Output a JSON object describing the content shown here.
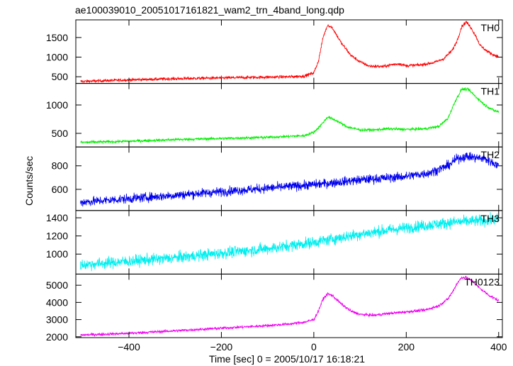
{
  "chart_data": {
    "type": "line",
    "title": "ae100039010_20051017161821_wam2_trn_4band_long.qdp",
    "xlabel": "Time [sec] 0 = 2005/10/17 16:18:21",
    "ylabel": "Counts/sec",
    "xlim": [
      -515,
      408
    ],
    "x_ticks": [
      -400,
      -200,
      0,
      200,
      400
    ],
    "x_tick_labels": [
      "−400",
      "−200",
      "0",
      "200",
      "400"
    ],
    "grid": false,
    "panels": [
      {
        "name": "TH0",
        "color": "#ff0000",
        "ylim": [
          330,
          1950
        ],
        "y_ticks": [
          500,
          1000,
          1500
        ],
        "noise": 28,
        "x": [
          -505,
          -400,
          -300,
          -200,
          -100,
          -50,
          -20,
          0,
          10,
          20,
          30,
          40,
          50,
          60,
          80,
          100,
          120,
          150,
          170,
          185,
          200,
          230,
          260,
          280,
          300,
          310,
          320,
          330,
          340,
          350,
          360,
          375,
          390,
          400
        ],
        "y": [
          380,
          420,
          450,
          470,
          490,
          500,
          520,
          600,
          900,
          1500,
          1820,
          1750,
          1550,
          1350,
          1050,
          880,
          770,
          760,
          810,
          830,
          780,
          800,
          860,
          950,
          1180,
          1420,
          1780,
          1900,
          1750,
          1550,
          1300,
          1150,
          1050,
          1020
        ]
      },
      {
        "name": "TH1",
        "color": "#00ee00",
        "ylim": [
          260,
          1380
        ],
        "y_ticks": [
          500,
          1000
        ],
        "noise": 18,
        "x": [
          -505,
          -400,
          -300,
          -200,
          -100,
          -20,
          0,
          15,
          30,
          50,
          70,
          100,
          130,
          160,
          200,
          240,
          270,
          290,
          305,
          320,
          335,
          350,
          370,
          390,
          400
        ],
        "y": [
          340,
          360,
          390,
          410,
          430,
          460,
          520,
          640,
          790,
          720,
          620,
          560,
          560,
          580,
          570,
          580,
          620,
          760,
          1050,
          1280,
          1270,
          1150,
          1000,
          900,
          880
        ]
      },
      {
        "name": "TH2",
        "color": "#0000ee",
        "ylim": [
          420,
          960
        ],
        "y_ticks": [
          600,
          800
        ],
        "noise": 28,
        "x": [
          -505,
          -300,
          -100,
          0,
          100,
          200,
          250,
          290,
          310,
          330,
          350,
          370,
          390,
          400
        ],
        "y": [
          490,
          550,
          610,
          640,
          680,
          710,
          740,
          800,
          860,
          880,
          870,
          860,
          820,
          800
        ]
      },
      {
        "name": "TH3",
        "color": "#00eeee",
        "ylim": [
          780,
          1480
        ],
        "y_ticks": [
          1000,
          1200,
          1400
        ],
        "noise": 45,
        "x": [
          -505,
          -300,
          -100,
          0,
          100,
          200,
          300,
          400
        ],
        "y": [
          880,
          960,
          1060,
          1130,
          1220,
          1290,
          1350,
          1380
        ]
      },
      {
        "name": "TH0123",
        "color": "#ee00ee",
        "ylim": [
          1950,
          5650
        ],
        "y_ticks": [
          2000,
          3000,
          4000,
          5000
        ],
        "noise": 60,
        "x": [
          -505,
          -400,
          -300,
          -200,
          -100,
          -50,
          -20,
          0,
          10,
          20,
          30,
          40,
          60,
          80,
          100,
          130,
          160,
          200,
          240,
          270,
          290,
          300,
          310,
          320,
          330,
          345,
          360,
          380,
          400
        ],
        "y": [
          2100,
          2200,
          2350,
          2500,
          2650,
          2750,
          2850,
          3000,
          3500,
          4200,
          4500,
          4400,
          3900,
          3500,
          3300,
          3250,
          3350,
          3450,
          3550,
          3800,
          4200,
          4600,
          5100,
          5450,
          5450,
          5200,
          4800,
          4400,
          4100
        ]
      }
    ]
  }
}
